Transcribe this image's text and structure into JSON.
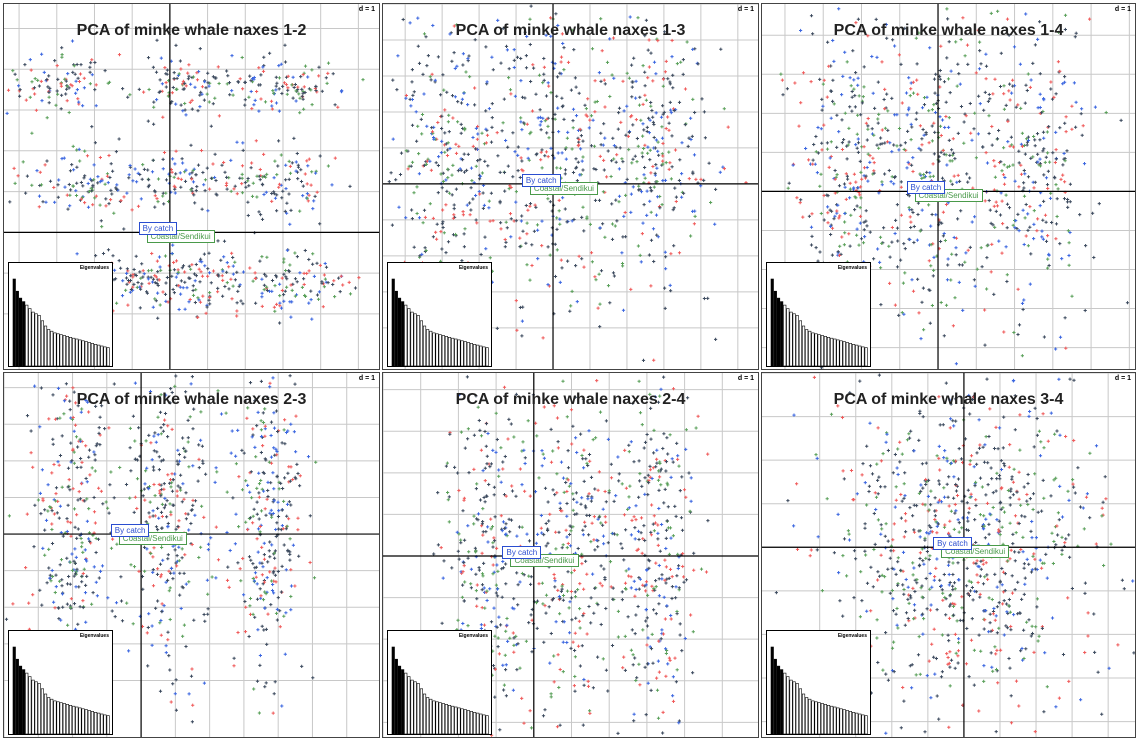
{
  "figure": {
    "scale_label": "d = 1",
    "eigen_title": "Eigenvalues",
    "group_labels": {
      "bycatch": "By catch",
      "coastal": "Coastal/Sendikui"
    },
    "colors": {
      "bycatch": "#3b66e0",
      "coastal": "#5aa05a",
      "red": "#f05a5a",
      "dark": "#3c4a5e",
      "axis": "#000000",
      "grid": "#c8c8c8"
    }
  },
  "chart_data": [
    {
      "type": "scatter",
      "title": "PCA of minke whale naxes 1-2",
      "axes": "1-2",
      "labels": {
        "bycatch": "By catch",
        "coastal": "Coastal/Sendikui"
      },
      "clusters": [
        {
          "cx": -1.5,
          "cy": 1.8,
          "sx": 0.4,
          "sy": 0.2
        },
        {
          "cx": 0.2,
          "cy": 1.8,
          "sx": 0.4,
          "sy": 0.2
        },
        {
          "cx": 1.5,
          "cy": 1.8,
          "sx": 0.4,
          "sy": 0.2
        },
        {
          "cx": -1.2,
          "cy": 0.6,
          "sx": 0.4,
          "sy": 0.2
        },
        {
          "cx": 0.1,
          "cy": 0.6,
          "sx": 0.4,
          "sy": 0.2
        },
        {
          "cx": 1.4,
          "cy": 0.6,
          "sx": 0.4,
          "sy": 0.2
        },
        {
          "cx": -0.4,
          "cy": -0.6,
          "sx": 0.4,
          "sy": 0.2
        },
        {
          "cx": 0.5,
          "cy": -0.6,
          "sx": 0.4,
          "sy": 0.2
        },
        {
          "cx": 1.6,
          "cy": -0.6,
          "sx": 0.4,
          "sy": 0.2
        }
      ],
      "xlim": [
        -2.2,
        2.8
      ],
      "ylim": [
        -1.7,
        2.8
      ]
    },
    {
      "type": "scatter",
      "title": "PCA of minke whale naxes 1-3",
      "axes": "1-3",
      "labels": {
        "bycatch": "By catch",
        "coastal": "Coastal/Sendikui"
      },
      "clusters": [
        {
          "cx": -1.4,
          "cy": 0.4,
          "sx": 0.4,
          "sy": 1.0
        },
        {
          "cx": 0.0,
          "cy": 0.4,
          "sx": 0.4,
          "sy": 1.0
        },
        {
          "cx": 1.3,
          "cy": 0.4,
          "sx": 0.4,
          "sy": 1.0
        }
      ],
      "xlim": [
        -2.3,
        2.8
      ],
      "ylim": [
        -2.6,
        2.5
      ]
    },
    {
      "type": "scatter",
      "title": "PCA of minke whale naxes 1-4",
      "axes": "1-4",
      "labels": {
        "bycatch": "By catch",
        "coastal": "Coastal/Sendikui"
      },
      "clusters": [
        {
          "cx": -1.2,
          "cy": 0.3,
          "sx": 0.4,
          "sy": 1.0
        },
        {
          "cx": 0.0,
          "cy": 0.3,
          "sx": 0.4,
          "sy": 1.0
        },
        {
          "cx": 1.2,
          "cy": 0.3,
          "sx": 0.4,
          "sy": 1.0
        }
      ],
      "xlim": [
        -2.3,
        2.6
      ],
      "ylim": [
        -2.3,
        2.4
      ]
    },
    {
      "type": "scatter",
      "title": "PCA of minke whale naxes 2-3",
      "axes": "2-3",
      "labels": {
        "bycatch": "By catch",
        "coastal": "Coastal/Sendikui"
      },
      "clusters": [
        {
          "cx": -1.0,
          "cy": 0.2,
          "sx": 0.3,
          "sy": 1.1
        },
        {
          "cx": 0.4,
          "cy": 0.2,
          "sx": 0.3,
          "sy": 1.1
        },
        {
          "cx": 1.8,
          "cy": 0.2,
          "sx": 0.3,
          "sy": 1.1
        }
      ],
      "xlim": [
        -2.0,
        3.5
      ],
      "ylim": [
        -2.8,
        2.2
      ]
    },
    {
      "type": "scatter",
      "title": "PCA of minke whale naxes 2-4",
      "axes": "2-4",
      "labels": {
        "bycatch": "By catch",
        "coastal": "Coastal/Sendikui"
      },
      "clusters": [
        {
          "cx": -0.6,
          "cy": 0.0,
          "sx": 0.3,
          "sy": 1.1
        },
        {
          "cx": 0.5,
          "cy": 0.0,
          "sx": 0.3,
          "sy": 1.1
        },
        {
          "cx": 1.6,
          "cy": 0.0,
          "sx": 0.3,
          "sy": 1.1
        }
      ],
      "xlim": [
        -2.0,
        3.0
      ],
      "ylim": [
        -2.2,
        2.2
      ]
    },
    {
      "type": "scatter",
      "title": "PCA of minke whale naxes 3-4",
      "axes": "3-4",
      "labels": {
        "bycatch": "By catch",
        "coastal": "Coastal/Sendikui"
      },
      "clusters": [
        {
          "cx": 0.0,
          "cy": 0.0,
          "sx": 0.9,
          "sy": 0.9
        }
      ],
      "xlim": [
        -2.8,
        2.4
      ],
      "ylim": [
        -2.2,
        2.0
      ]
    }
  ]
}
